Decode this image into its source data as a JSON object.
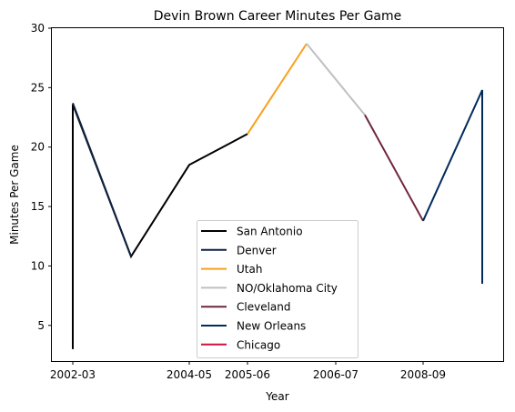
{
  "chart_data": {
    "type": "line",
    "title": "Devin Brown Career Minutes Per Game",
    "xlabel": "Year",
    "ylabel": "Minutes Per Game",
    "x_ticks": [
      "2002-03",
      "2004-05",
      "2005-06",
      "2006-07",
      "2008-09"
    ],
    "ylim": [
      2,
      30
    ],
    "y_ticks": [
      5,
      10,
      15,
      20,
      25,
      30
    ],
    "grid": false,
    "legend_position": "lower center",
    "series": [
      {
        "name": "San Antonio",
        "color": "#000000",
        "points": [
          [
            "2002-03",
            3.0
          ],
          [
            "2002-03",
            23.6
          ],
          [
            "2003-04",
            10.8
          ],
          [
            "2004-05",
            18.5
          ],
          [
            "2005-06",
            21.1
          ]
        ]
      },
      {
        "name": "Denver",
        "color": "#0E2240",
        "points": [
          [
            "2002-03",
            23.7
          ],
          [
            "2003-04",
            10.8
          ]
        ]
      },
      {
        "name": "Utah",
        "color": "#F9A01B",
        "points": [
          [
            "2005-06",
            21.1
          ],
          [
            "2006-07 (mid)",
            28.7
          ]
        ]
      },
      {
        "name": "NO/Oklahoma City",
        "color": "#C0C0C0",
        "points": [
          [
            "2006-07 (mid)",
            28.7
          ],
          [
            "2007-08",
            22.7
          ]
        ]
      },
      {
        "name": "Cleveland",
        "color": "#6F263D",
        "points": [
          [
            "2007-08",
            22.7
          ],
          [
            "2008-09",
            13.8
          ]
        ]
      },
      {
        "name": "New Orleans",
        "color": "#002B5C",
        "points": [
          [
            "2008-09",
            13.8
          ],
          [
            "2009-10",
            24.8
          ],
          [
            "2009-10",
            8.5
          ]
        ]
      },
      {
        "name": "Chicago",
        "color": "#CE1141",
        "points": []
      }
    ]
  }
}
